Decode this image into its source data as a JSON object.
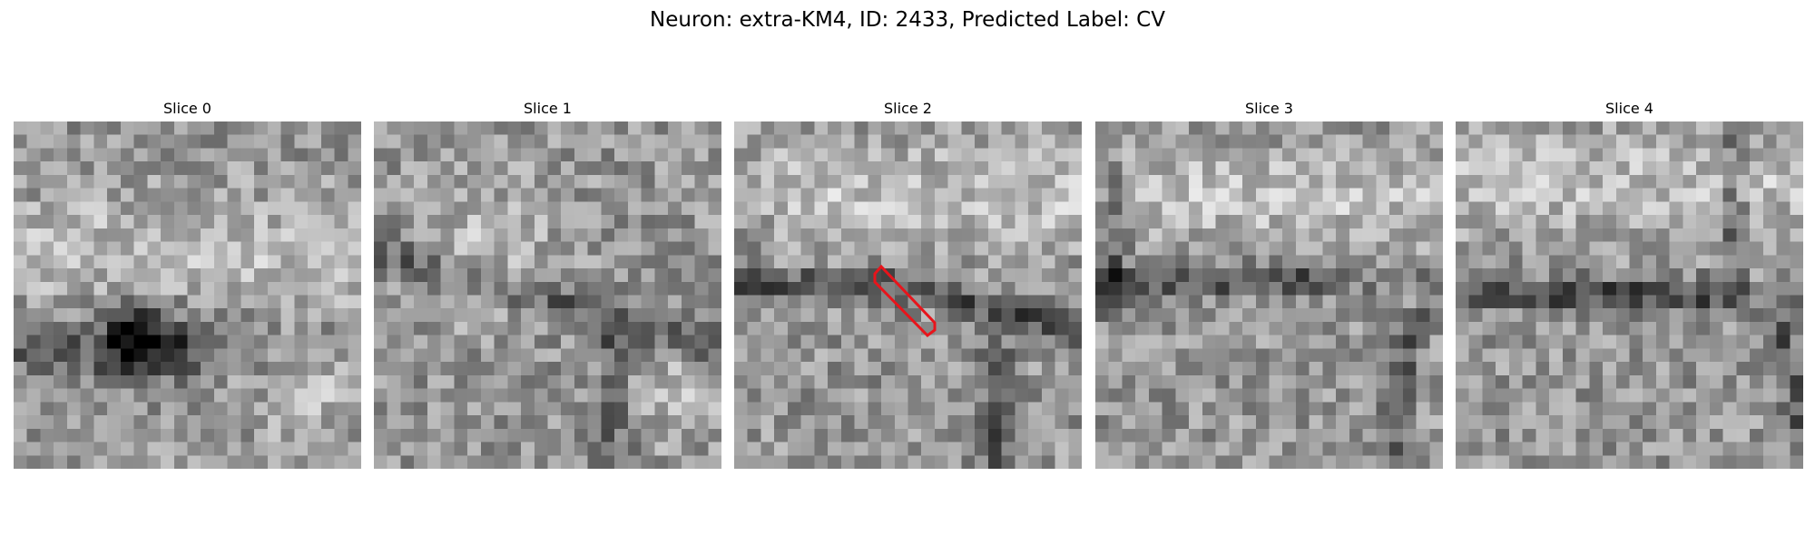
{
  "figure": {
    "title": "Neuron: extra-KM4, ID: 2433, Predicted Label: CV"
  },
  "panels": [
    {
      "title": "Slice 0"
    },
    {
      "title": "Slice 1"
    },
    {
      "title": "Slice 2"
    },
    {
      "title": "Slice 3"
    },
    {
      "title": "Slice 4"
    }
  ],
  "annotation": {
    "color": "#e8141b"
  }
}
